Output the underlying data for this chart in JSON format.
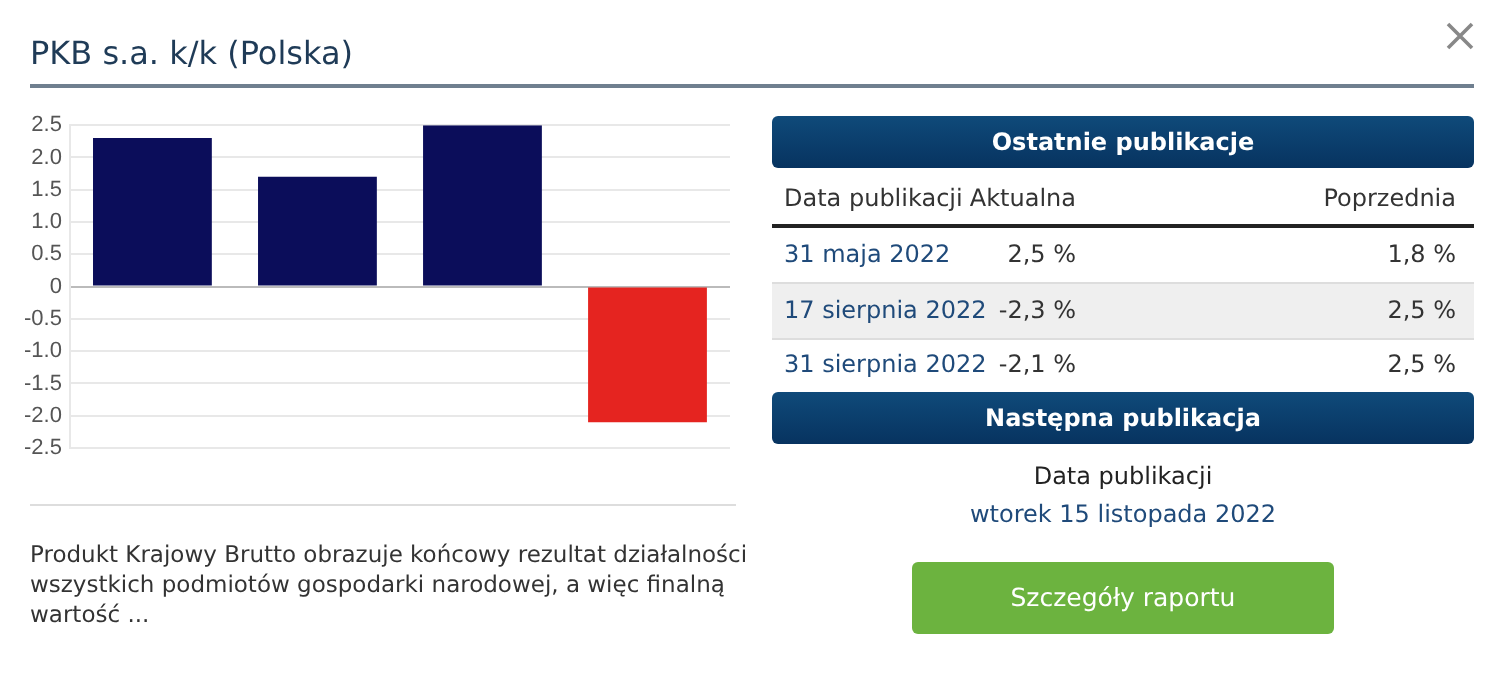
{
  "chart_data": [
    {
      "type": "bar",
      "title": "PKB s.a. k/k (Polska)",
      "categories": [
        null,
        null,
        null,
        null
      ],
      "values": [
        2.3,
        1.7,
        2.5,
        -2.1
      ],
      "colors": [
        "#0b0d5a",
        "#0b0d5a",
        "#0b0d5a",
        "#e52420"
      ],
      "ylim": [
        -2.5,
        2.5
      ],
      "yticks": [
        -2.5,
        {
          "value": -2,
          "label": "-2.0"
        },
        -1.5,
        {
          "value": -1,
          "label": "-1.0"
        },
        -0.5,
        0,
        0.5,
        {
          "value": 1,
          "label": "1.0"
        },
        1.5,
        {
          "value": 2,
          "label": "2.0"
        },
        2.5
      ],
      "grid": "y",
      "legend": false,
      "annotations": [
        "Produkt Krajowy Brutto obrazuje końcowy rezultat działalności wszystkich podmiotów gospodarki narodowej, a więc finalną wartość ..."
      ]
    },
    {
      "type": "other",
      "title": "Ostatnie publikacje",
      "annotations": [
        "Data publikacji",
        "Aktualna",
        "Poprzednia",
        "31 maja 2022",
        "2,5 %",
        "1,8 %",
        "17 sierpnia 2022",
        "-2,3 %",
        "2,5 %",
        "31 sierpnia 2022",
        "-2,1 %",
        "2,5 %",
        "Następna publikacja",
        "Data publikacji",
        "wtorek 15 listopada 2022",
        "Szczegóły raportu"
      ]
    }
  ]
}
